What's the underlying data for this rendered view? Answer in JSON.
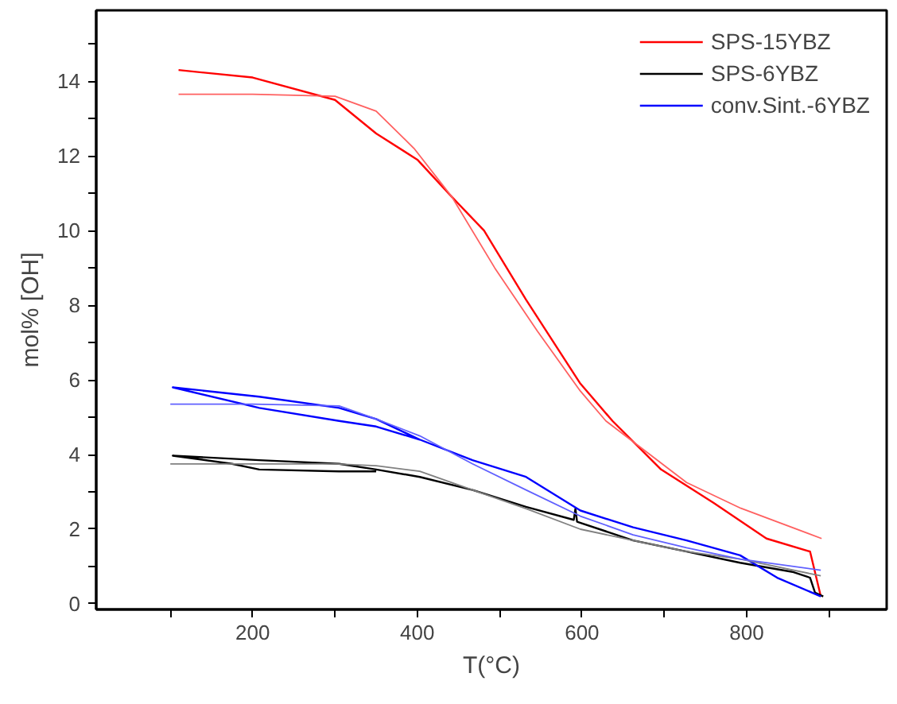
{
  "chart_data": {
    "type": "line",
    "xlabel": "T(°C)",
    "ylabel": "mol% [OH]",
    "xlim": [
      10,
      970
    ],
    "ylim": [
      -0.15,
      15.9
    ],
    "xticks": [
      {
        "value": 100,
        "label": null
      },
      200,
      {
        "value": 300,
        "label": null
      },
      400,
      {
        "value": 500,
        "label": null
      },
      600,
      {
        "value": 700,
        "label": null
      },
      800,
      {
        "value": 900,
        "label": null
      }
    ],
    "yticks": [
      0,
      {
        "value": 1,
        "label": null
      },
      2,
      {
        "value": 3,
        "label": null
      },
      4,
      {
        "value": 5,
        "label": null
      },
      6,
      {
        "value": 7,
        "label": null
      },
      8,
      {
        "value": 9,
        "label": null
      },
      10,
      {
        "value": 11,
        "label": null
      },
      12,
      {
        "value": 13,
        "label": null
      },
      14,
      {
        "value": 15,
        "label": null
      }
    ],
    "grid": false,
    "legend": "top right",
    "marker": "none",
    "line_style": "solid",
    "series": [
      {
        "name": "SPS-15YBZ",
        "color": "#ff0000",
        "x": [
          110,
          200,
          300,
          350,
          400,
          442,
          481,
          532,
          598,
          637,
          696,
          760,
          824,
          877,
          890
        ],
        "values": [
          14.3,
          14.1,
          13.5,
          12.6,
          11.9,
          10.9,
          10.0,
          8.15,
          5.9,
          4.9,
          3.6,
          2.7,
          1.75,
          1.4,
          0.2
        ]
      },
      {
        "name": "SPS-6YBZ",
        "color": "#000000",
        "x": [
          350,
          305,
          208,
          175,
          103,
          208,
          305,
          350,
          403,
          467,
          532,
          590,
          592,
          594,
          662,
          727,
          792,
          857,
          877,
          883,
          893
        ],
        "values": [
          3.55,
          3.55,
          3.6,
          3.75,
          3.97,
          3.85,
          3.75,
          3.6,
          3.4,
          3.05,
          2.6,
          2.25,
          2.55,
          2.2,
          1.7,
          1.4,
          1.1,
          0.85,
          0.7,
          0.3,
          0.2
        ]
      },
      {
        "name": "conv.Sint.-6YBZ",
        "color": "#0000ff",
        "x": [
          403,
          350,
          305,
          208,
          103,
          208,
          305,
          350,
          403,
          467,
          532,
          598,
          662,
          727,
          792,
          837,
          890
        ],
        "values": [
          4.4,
          4.75,
          4.9,
          5.25,
          5.8,
          5.55,
          5.25,
          4.95,
          4.4,
          3.85,
          3.4,
          2.5,
          2.05,
          1.7,
          1.3,
          0.7,
          0.2
        ]
      },
      {
        "color": "#ff6060",
        "x": [
          110,
          200,
          300,
          350,
          396,
          442,
          494,
          546,
          598,
          629,
          727,
          793,
          891
        ],
        "values": [
          13.65,
          13.65,
          13.6,
          13.2,
          12.2,
          10.9,
          9.0,
          7.3,
          5.7,
          4.9,
          3.25,
          2.56,
          1.75
        ]
      },
      {
        "color": "#808080",
        "x": [
          100,
          200,
          300,
          350,
          403,
          467,
          532,
          598,
          662,
          727,
          792,
          890
        ],
        "values": [
          3.75,
          3.75,
          3.75,
          3.7,
          3.55,
          3.05,
          2.55,
          2.0,
          1.7,
          1.4,
          1.2,
          0.75
        ]
      },
      {
        "color": "#6060ff",
        "x": [
          100,
          200,
          250,
          305,
          350,
          403,
          467,
          532,
          598,
          662,
          727,
          792,
          890
        ],
        "values": [
          5.35,
          5.35,
          5.33,
          5.3,
          4.95,
          4.5,
          3.75,
          3.05,
          2.35,
          1.85,
          1.5,
          1.2,
          0.9
        ]
      }
    ]
  }
}
